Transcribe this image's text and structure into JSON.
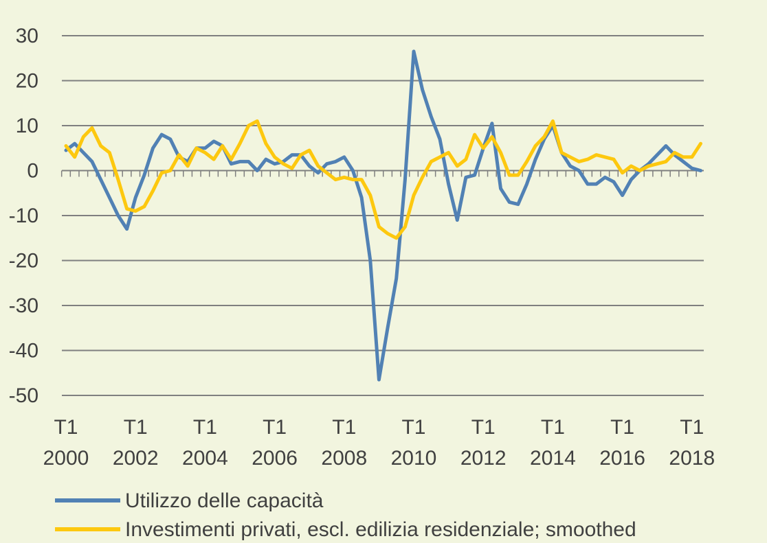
{
  "chart_data": {
    "type": "line",
    "title": "",
    "xlabel": "",
    "ylabel": "",
    "ylim": [
      -50,
      30
    ],
    "yticks": [
      30,
      20,
      10,
      0,
      -10,
      -20,
      -30,
      -40,
      -50
    ],
    "grid": true,
    "legend_position": "bottom-left",
    "x_start": "2000Q1",
    "x_tick_labels": [
      {
        "period": "T1",
        "year": "2000"
      },
      {
        "period": "T1",
        "year": "2002"
      },
      {
        "period": "T1",
        "year": "2004"
      },
      {
        "period": "T1",
        "year": "2006"
      },
      {
        "period": "T1",
        "year": "2008"
      },
      {
        "period": "T1",
        "year": "2010"
      },
      {
        "period": "T1",
        "year": "2012"
      },
      {
        "period": "T1",
        "year": "2014"
      },
      {
        "period": "T1",
        "year": "2016"
      },
      {
        "period": "T1",
        "year": "2018"
      }
    ],
    "series": [
      {
        "name": "Utilizzo delle capacità",
        "color": "#5181b4",
        "values": [
          4.5,
          6,
          4,
          2,
          -2,
          -6,
          -10,
          -13,
          -6,
          -1,
          5,
          8,
          7,
          3,
          2,
          5,
          5,
          6.5,
          5.5,
          1.5,
          2,
          2,
          0,
          2.5,
          1.5,
          2,
          3.5,
          3.5,
          1,
          -0.5,
          1.5,
          2,
          3,
          0,
          -6,
          -20,
          -46.5,
          -35,
          -24,
          -2,
          26.5,
          18,
          12,
          7,
          -3,
          -11,
          -1.5,
          -1,
          5,
          10.5,
          -4,
          -7,
          -7.5,
          -3,
          2.5,
          7,
          10,
          4,
          1,
          0,
          -3,
          -3,
          -1.5,
          -2.5,
          -5.5,
          -2,
          0,
          1.5,
          3.5,
          5.5,
          3.5,
          2,
          0.5,
          0
        ]
      },
      {
        "name": "Investimenti privati, escl. edilizia residenziale; smoothed",
        "color": "#fdc80f",
        "values": [
          5.5,
          3,
          7.5,
          9.5,
          5.5,
          4,
          -2,
          -8.5,
          -9,
          -8,
          -4.5,
          -0.5,
          0,
          3.5,
          1,
          5,
          4,
          2.5,
          5.5,
          2.5,
          6,
          10,
          11,
          6,
          3,
          1.5,
          0.5,
          3.5,
          4.5,
          1,
          -0.5,
          -2,
          -1.5,
          -2,
          -2,
          -5.5,
          -12.5,
          -14,
          -15,
          -12.5,
          -5.5,
          -1.5,
          2,
          3,
          4,
          1,
          2.5,
          8,
          5,
          7.5,
          4,
          -1,
          -1,
          2,
          5.5,
          7.5,
          11,
          4,
          3,
          2,
          2.5,
          3.5,
          3,
          2.5,
          -0.5,
          1,
          0,
          1,
          1.5,
          2,
          4,
          3,
          3,
          6
        ]
      }
    ]
  }
}
